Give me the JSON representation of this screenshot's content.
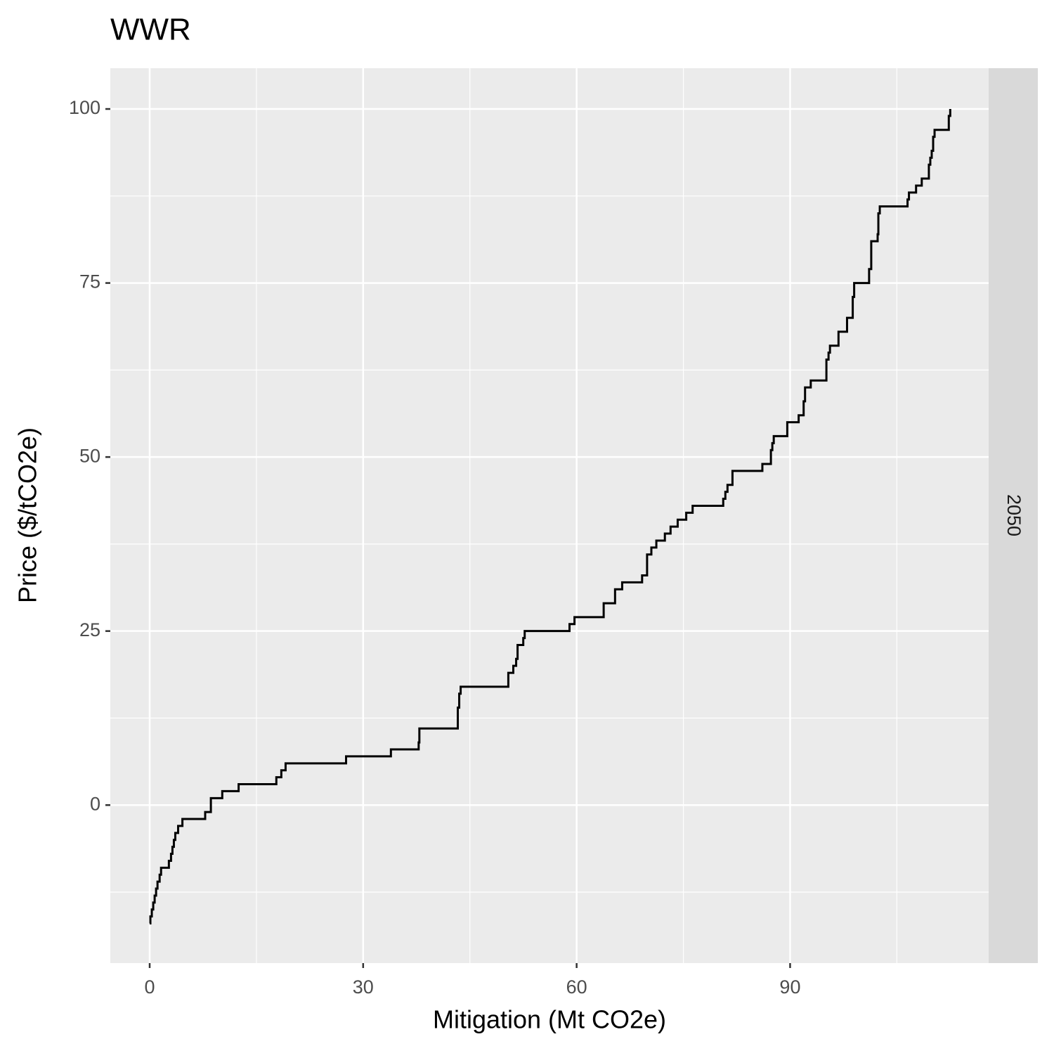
{
  "chart_data": {
    "type": "line",
    "step": "hv",
    "title": "WWR",
    "x_label": "Mitigation (Mt CO2e)",
    "y_label": "Price ($/tCO2e)",
    "facet_label": "2050",
    "x": [
      0,
      0.1,
      0.3,
      0.5,
      0.7,
      0.9,
      1.1,
      1.4,
      1.6,
      2.7,
      3,
      3.2,
      3.4,
      3.6,
      4,
      4.6,
      7.8,
      8.6,
      10.2,
      12.5,
      17.8,
      18.5,
      19.1,
      27.6,
      33.9,
      37.8,
      37.9,
      43.3,
      43.5,
      43.7,
      50.4,
      51.1,
      51.5,
      51.7,
      52.5,
      52.7,
      59,
      59.7,
      63.8,
      65.4,
      66.4,
      69.2,
      69.9,
      70.5,
      71.2,
      72.4,
      73.2,
      74.2,
      75.4,
      76.3,
      80.6,
      80.9,
      81.2,
      81.9,
      86.1,
      87.3,
      87.5,
      87.7,
      89.6,
      91.2,
      91.9,
      92.1,
      92.9,
      95.1,
      95.4,
      95.6,
      96.8,
      98,
      98.8,
      99,
      101.1,
      101.4,
      102.3,
      102.4,
      102.6,
      106.5,
      106.7,
      107.7,
      108.5,
      109.5,
      109.7,
      109.9,
      110.1,
      110.3,
      112.3,
      112.5
    ],
    "series": [
      {
        "name": "2050",
        "color": "#000000",
        "values": [
          -17,
          -16,
          -15,
          -14,
          -13,
          -12,
          -11,
          -10,
          -9,
          -8,
          -7,
          -6,
          -5,
          -4,
          -3,
          -2,
          -1,
          1,
          2,
          3,
          4,
          5,
          6,
          7,
          8,
          9,
          11,
          14,
          16,
          17,
          19,
          20,
          21,
          23,
          24,
          25,
          26,
          27,
          29,
          31,
          32,
          33,
          36,
          37,
          38,
          39,
          40,
          41,
          42,
          43,
          44,
          45,
          46,
          48,
          49,
          51,
          52,
          53,
          55,
          56,
          58,
          60,
          61,
          64,
          65,
          66,
          68,
          70,
          73,
          75,
          77,
          81,
          82,
          85,
          86,
          87,
          88,
          89,
          90,
          92,
          93,
          94,
          96,
          97,
          99,
          100
        ]
      }
    ],
    "xlim": [
      -5.53,
      117.9
    ],
    "ylim": [
      -22.7,
      105.86
    ],
    "xticks": [
      0,
      30,
      60,
      90
    ],
    "yticks": [
      0,
      25,
      50,
      75,
      100
    ],
    "xminor": [
      15,
      45,
      75,
      105
    ],
    "yminor": [
      -12.5,
      12.5,
      37.5,
      62.5,
      87.5
    ],
    "grid": true
  }
}
